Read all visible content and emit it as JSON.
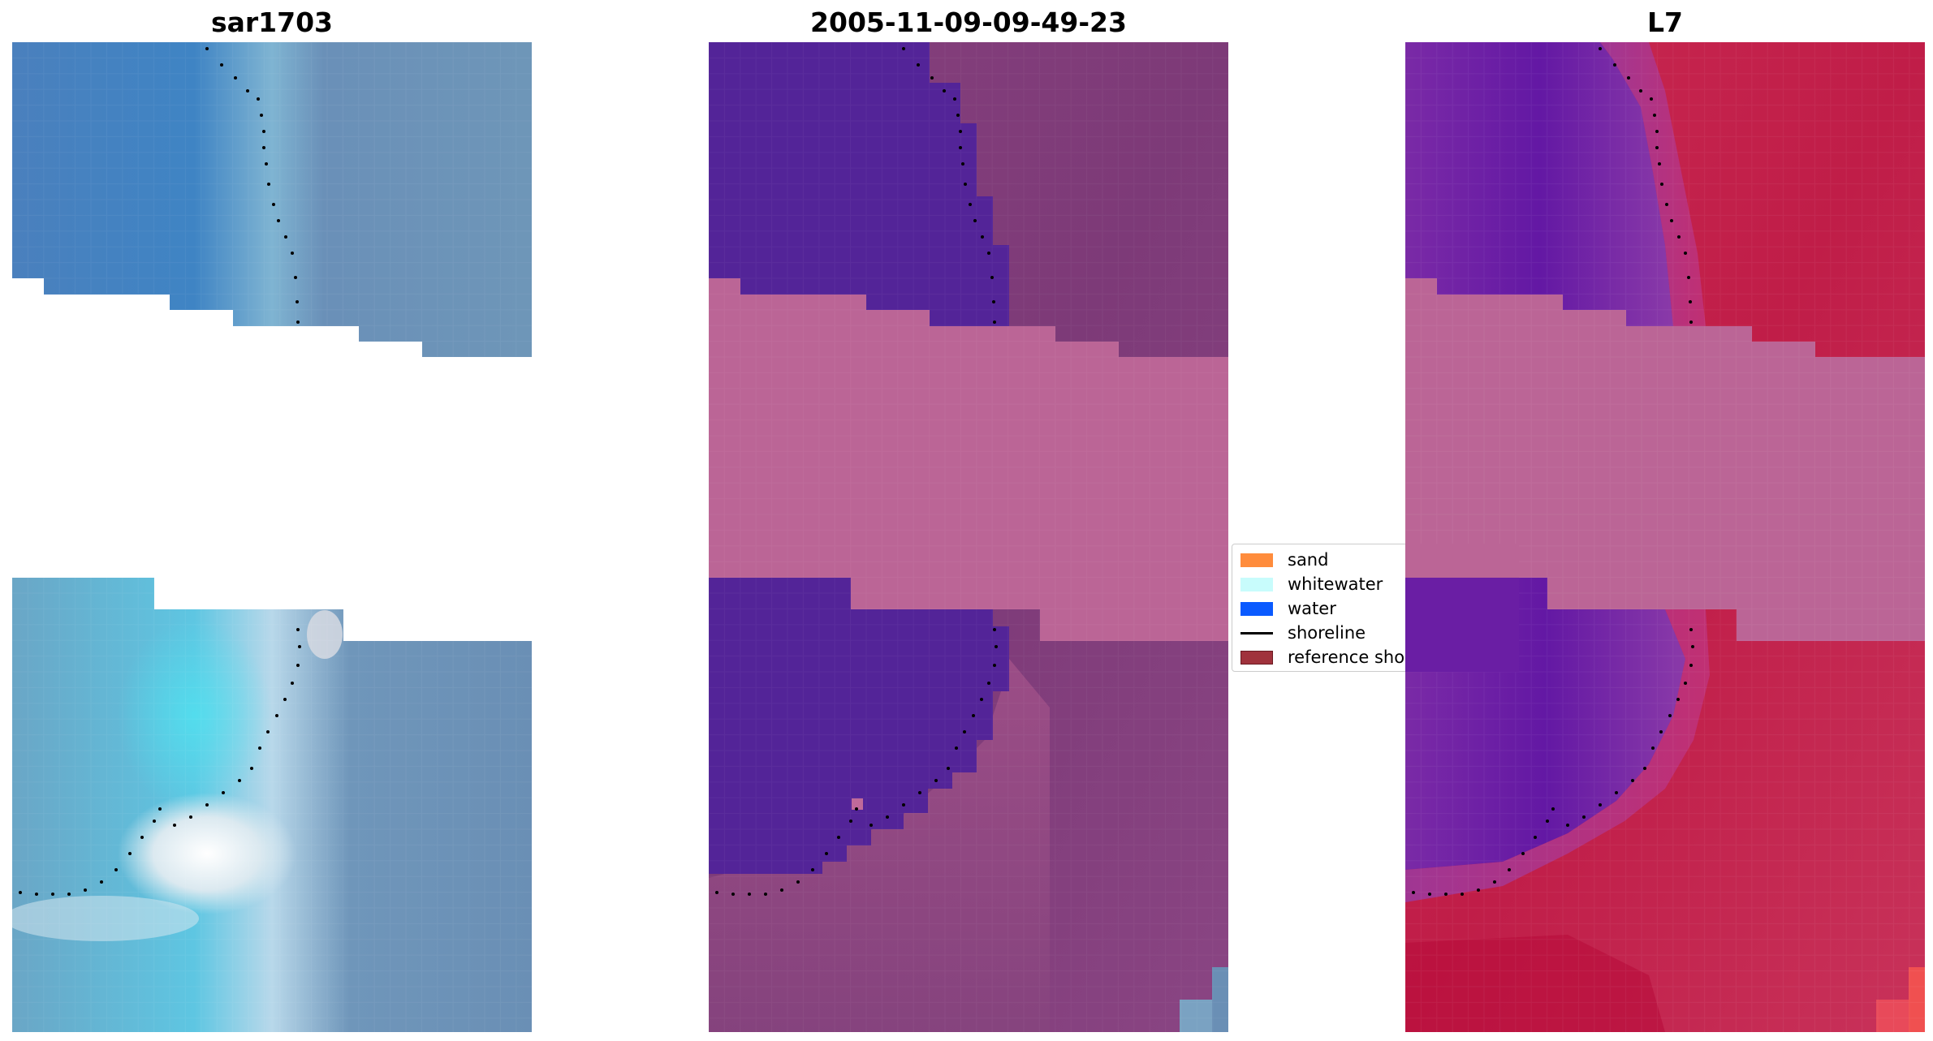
{
  "panels": [
    {
      "id": "rgb",
      "title": "sar1703"
    },
    {
      "id": "classified",
      "title": "2005-11-09-09-49-23"
    },
    {
      "id": "index",
      "title": "L7"
    }
  ],
  "legend": {
    "items": [
      {
        "label": "sand",
        "color": "#ff8c3c",
        "kind": "patch"
      },
      {
        "label": "whitewater",
        "color": "#c8fcfc",
        "kind": "patch"
      },
      {
        "label": "water",
        "color": "#0a5aff",
        "kind": "patch"
      },
      {
        "label": "shoreline",
        "color": "#000000",
        "kind": "line"
      },
      {
        "label": "reference shoreline",
        "color": "#a0323c",
        "kind": "patch"
      }
    ]
  },
  "colors": {
    "rgb_water": "#4a86c0",
    "rgb_land": "#6e93b6",
    "rgb_cyan": "#5ac8e6",
    "rgb_white": "#eef3f6",
    "classified_water": "#532498",
    "classified_land": "#7e3a78",
    "classified_band": "#bb6596",
    "index_water": "#6a20a0",
    "index_land": "#c61f4c",
    "index_band": "#bb6596",
    "shoreline": "#000000"
  }
}
